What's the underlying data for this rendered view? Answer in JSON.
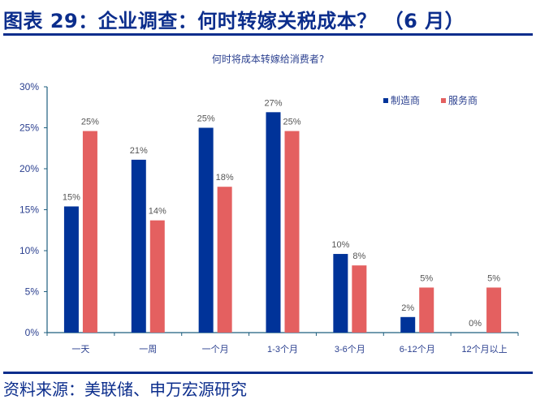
{
  "header": {
    "title": "图表 29：企业调查：何时转嫁关税成本？ （6 月）"
  },
  "footer": {
    "source": "资料来源：美联储、申万宏源研究"
  },
  "colors": {
    "brand": "#0b2d8c",
    "manufacturers": "#003399",
    "services": "#e46060",
    "axis": "#1f5f7f",
    "label": "#555555"
  },
  "chart_data": {
    "type": "bar",
    "title": "何时将成本转嫁给消费者?",
    "xlabel": "",
    "ylabel": "",
    "ylim": [
      0,
      30
    ],
    "yticks": [
      "0%",
      "5%",
      "10%",
      "15%",
      "20%",
      "25%",
      "30%"
    ],
    "grid": false,
    "legend_position": "top-right",
    "categories": [
      "一天",
      "一周",
      "一个月",
      "1-3个月",
      "3-6个月",
      "6-12个月",
      "12个月以上"
    ],
    "series": [
      {
        "name": "制造商",
        "color": "#003399",
        "values": [
          15.4,
          21.1,
          25.0,
          26.9,
          9.6,
          1.9,
          0
        ],
        "labels": [
          "15%",
          "21%",
          "25%",
          "27%",
          "10%",
          "2%",
          "0%"
        ]
      },
      {
        "name": "服务商",
        "color": "#e46060",
        "values": [
          24.6,
          13.7,
          17.8,
          24.6,
          8.2,
          5.5,
          5.5
        ],
        "labels": [
          "25%",
          "14%",
          "18%",
          "25%",
          "8%",
          "5%",
          "5%"
        ]
      }
    ]
  }
}
